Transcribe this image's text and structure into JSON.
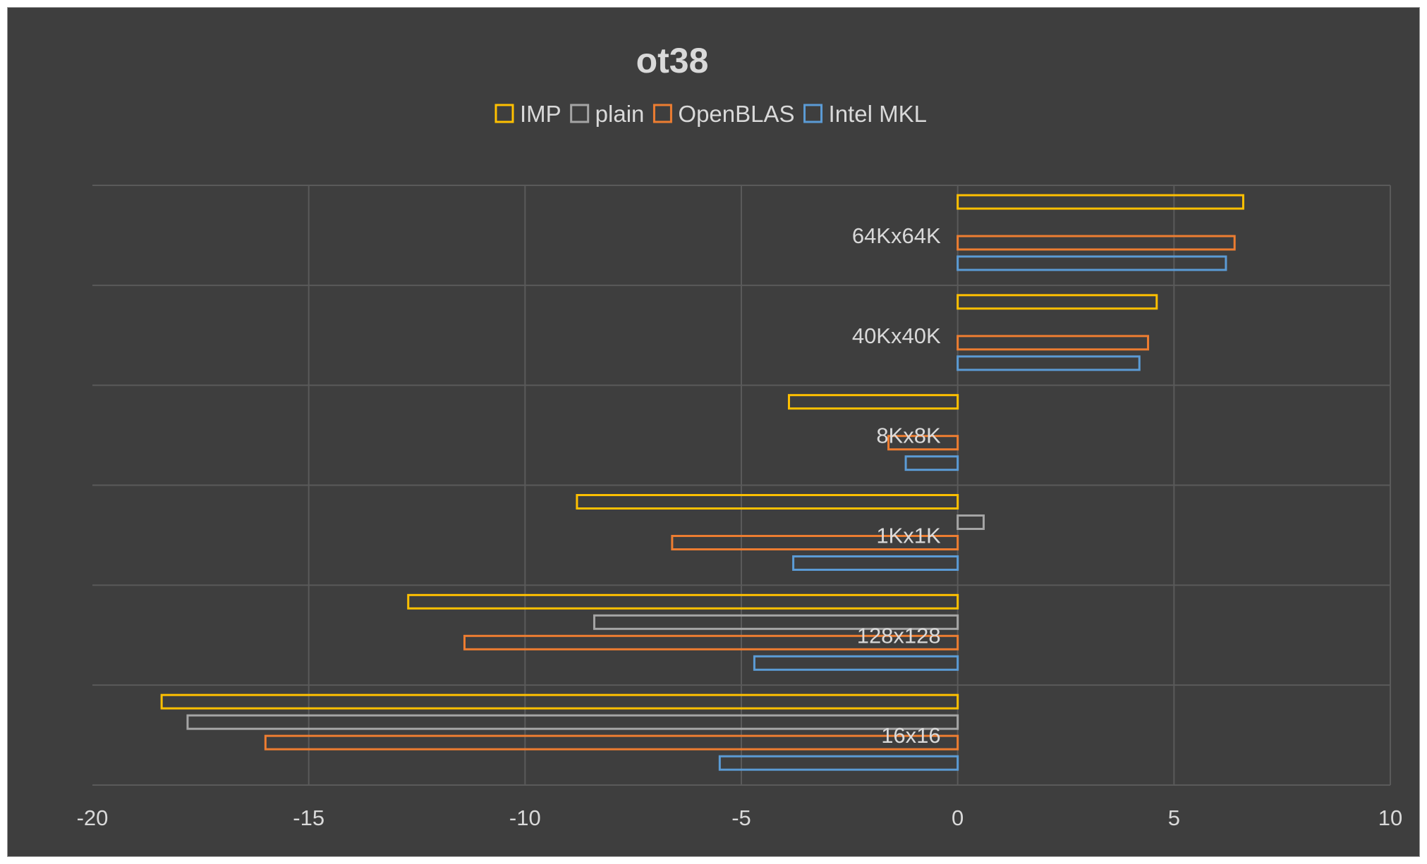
{
  "chart_data": {
    "type": "bar",
    "orientation": "horizontal",
    "title": "ot38",
    "xlabel": "",
    "ylabel": "",
    "xlim": [
      -20,
      10
    ],
    "x_ticks": [
      -20,
      -15,
      -10,
      -5,
      0,
      5,
      10
    ],
    "grid": true,
    "legend_position": "top",
    "categories": [
      "64Kx64K",
      "40Kx40K",
      "8Kx8K",
      "1Kx1K",
      "128x128",
      "16x16"
    ],
    "series": [
      {
        "name": "IMP",
        "color": "#ffc000",
        "values": [
          6.6,
          4.6,
          -3.9,
          -8.8,
          -12.7,
          -18.4
        ]
      },
      {
        "name": "plain",
        "color": "#a5a5a5",
        "values": [
          0,
          0,
          0,
          0.6,
          -8.4,
          -17.8
        ]
      },
      {
        "name": "OpenBLAS",
        "color": "#ed7d31",
        "values": [
          6.4,
          4.4,
          -1.6,
          -6.6,
          -11.4,
          -16.0
        ]
      },
      {
        "name": "Intel MKL",
        "color": "#5b9bd5",
        "values": [
          6.2,
          4.2,
          -1.2,
          -3.8,
          -4.7,
          -5.5
        ]
      }
    ]
  }
}
